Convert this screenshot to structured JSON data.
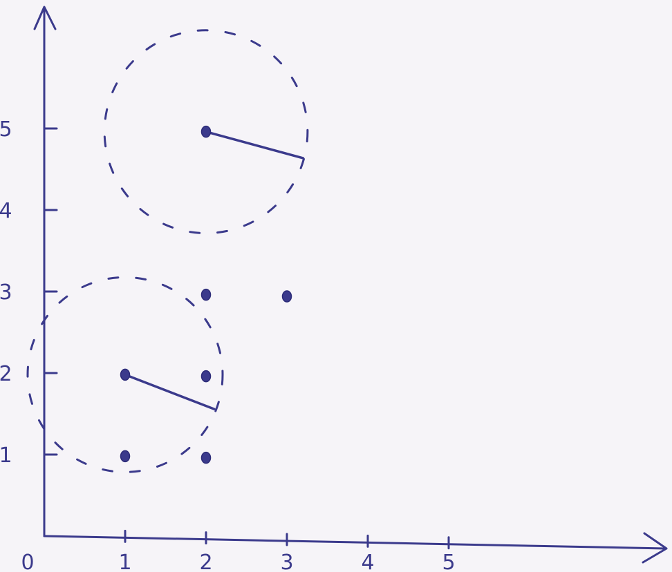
{
  "diagram": {
    "x_tick_labels": [
      "0",
      "1",
      "2",
      "3",
      "4",
      "5"
    ],
    "y_tick_labels": [
      "1",
      "2",
      "3",
      "4",
      "5"
    ],
    "points": [
      {
        "x": 1,
        "y": 1
      },
      {
        "x": 2,
        "y": 1
      },
      {
        "x": 1,
        "y": 2
      },
      {
        "x": 2,
        "y": 2
      },
      {
        "x": 2,
        "y": 3
      },
      {
        "x": 3,
        "y": 3
      },
      {
        "x": 2,
        "y": 5
      }
    ],
    "circles": [
      {
        "center_x": 1,
        "center_y": 2,
        "radius": 1.2,
        "style": "dashed"
      },
      {
        "center_x": 2,
        "center_y": 5,
        "radius": 1.25,
        "style": "dashed"
      }
    ],
    "radius_segments": [
      {
        "from": [
          1,
          2
        ],
        "to": [
          2.1,
          1.6
        ]
      },
      {
        "from": [
          2,
          5
        ],
        "to": [
          3.2,
          4.7
        ]
      }
    ],
    "ink_color": "#3b3a8c",
    "paper_color": "#f6f4f8"
  }
}
